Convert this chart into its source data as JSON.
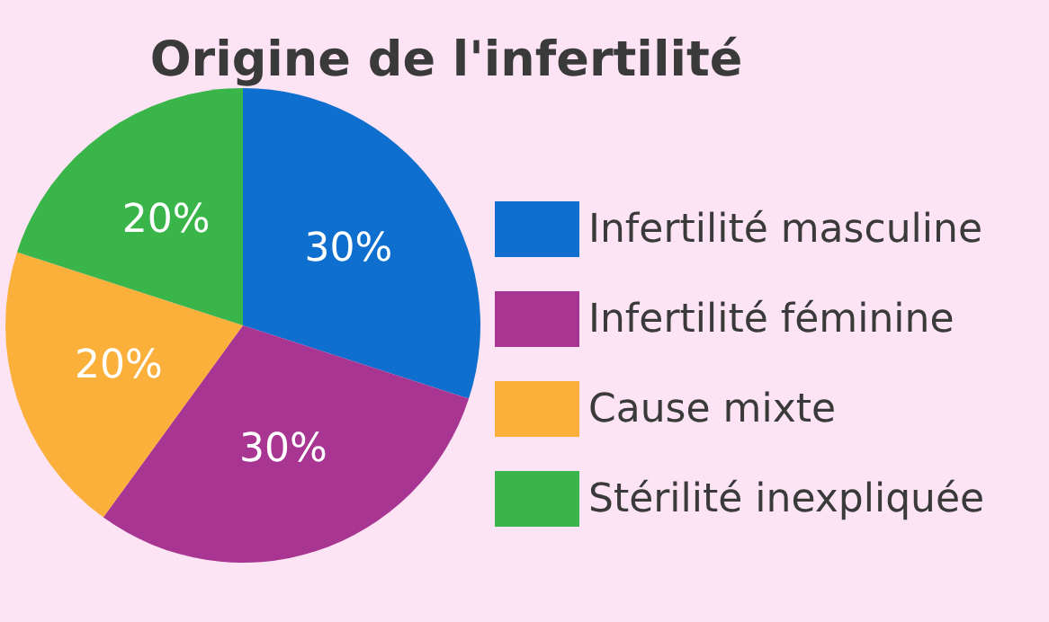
{
  "chart_data": {
    "type": "pie",
    "title": "Origine de l'infertilité",
    "categories": [
      "Infertilité masculine",
      "Infertilité féminine",
      "Cause mixte",
      "Stérilité inexpliquée"
    ],
    "values": [
      30,
      30,
      20,
      20
    ],
    "colors": [
      "#0f6fcf",
      "#a83591",
      "#fbb03b",
      "#3ab54a"
    ],
    "value_labels": [
      "30%",
      "30%",
      "20%",
      "20%"
    ],
    "legend": "right"
  }
}
